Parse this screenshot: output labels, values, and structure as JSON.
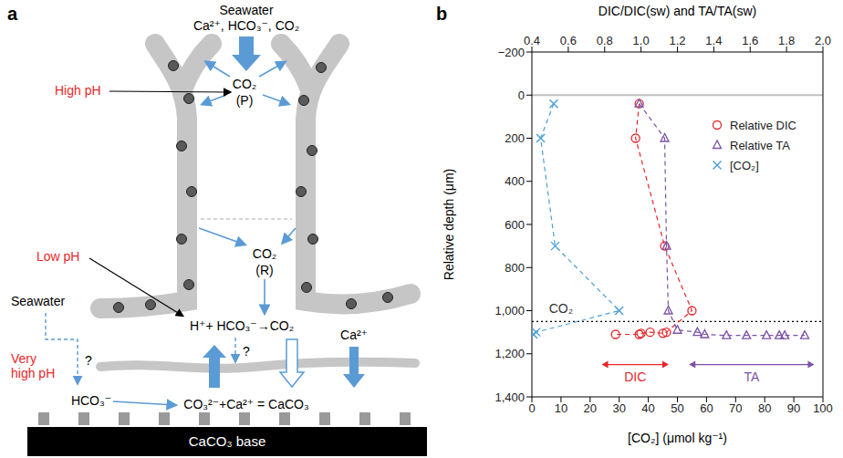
{
  "diagram": {
    "panel_label": "a",
    "top_source": {
      "title": "Seawater",
      "species": "Ca²⁺, HCO₃⁻, CO₂"
    },
    "photosynthesis_site": {
      "species": "CO₂",
      "label": "(P)"
    },
    "respiration_site": {
      "species": "CO₂",
      "label": "(R)"
    },
    "ph_labels": {
      "high": "High pH",
      "low": "Low pH",
      "very_high": "Very high pH"
    },
    "side_source": "Seawater",
    "calicoblastic_reaction": "H⁺+ HCO₃⁻→CO₂",
    "calcium": "Ca²⁺",
    "bicarbonate": "HCO₃⁻",
    "precipitation": "CO₃²⁻+Ca²⁺ = CaCO₃",
    "question_marks": [
      "?",
      "?"
    ],
    "base": "CaCO₃ base"
  },
  "chart_data": {
    "type": "scatter",
    "panel_label": "b",
    "x_label": "[CO₂] (μmol kg⁻¹)",
    "x2_label": "DIC/DIC(sw) and TA/TA(sw)",
    "y_label": "Relative depth (μm)",
    "xlim": [
      0,
      100
    ],
    "xticks": [
      0,
      10,
      20,
      30,
      40,
      50,
      60,
      70,
      80,
      90,
      100
    ],
    "x2lim": [
      0.4,
      2.0
    ],
    "x2ticks": [
      0.4,
      0.6,
      0.8,
      {
        "value": 1,
        "label": "1.0"
      },
      1.2,
      1.4,
      1.6,
      1.8,
      {
        "value": 2,
        "label": "2.0"
      }
    ],
    "ylim": [
      1400,
      -200
    ],
    "yticks": [
      {
        "value": -200,
        "label": "−200"
      },
      0,
      200,
      400,
      600,
      800,
      {
        "value": 1000,
        "label": "1,000"
      },
      {
        "value": 1200,
        "label": "1,200"
      },
      {
        "value": 1400,
        "label": "1,400"
      }
    ],
    "grid": false,
    "legend": "upper right",
    "series": [
      {
        "name": "Relative DIC",
        "color": "#e8262a",
        "marker": "circle",
        "line_style": "dashed",
        "axis": "x2",
        "x": [
          0.99,
          0.97,
          1.13,
          1.28,
          1.14,
          1.12,
          1.05,
          1.0,
          0.99,
          0.86
        ],
        "y": [
          40,
          200,
          700,
          1000,
          1100,
          1105,
          1100,
          1105,
          1110,
          1110
        ]
      },
      {
        "name": "Relative TA",
        "color": "#7b52a8",
        "marker": "triangle",
        "line_style": "dashed",
        "axis": "x2",
        "x": [
          0.99,
          1.13,
          1.14,
          1.15,
          1.2,
          1.31,
          1.35,
          1.47,
          1.58,
          1.69,
          1.76,
          1.79,
          1.9
        ],
        "y": [
          40,
          200,
          700,
          1000,
          1090,
          1100,
          1110,
          1115,
          1115,
          1115,
          1115,
          1115,
          1115
        ]
      },
      {
        "name": "[CO₂]",
        "color": "#4a9fd6",
        "marker": "x",
        "line_style": "dashed",
        "axis": "x",
        "x": [
          7.5,
          3,
          8,
          30,
          1.5,
          0.5
        ],
        "y": [
          40,
          200,
          700,
          1000,
          1100,
          1110
        ]
      }
    ],
    "reference_lines": [
      {
        "y": 0,
        "color": "#c0c0c0",
        "line_style": "solid"
      },
      {
        "y": 1050,
        "color": "#000000",
        "line_style": "dotted"
      }
    ],
    "annotations": [
      {
        "text": "CO₂",
        "x": 10,
        "y": 990,
        "color": "#333333"
      },
      {
        "text": "DIC",
        "x": [
          24,
          47
        ],
        "y": 1250,
        "color": "#e8262a",
        "marker": "double_arrow"
      },
      {
        "text": "TA",
        "x": [
          54,
          97
        ],
        "y": 1250,
        "color": "#7b52a8",
        "marker": "double_arrow"
      }
    ]
  }
}
